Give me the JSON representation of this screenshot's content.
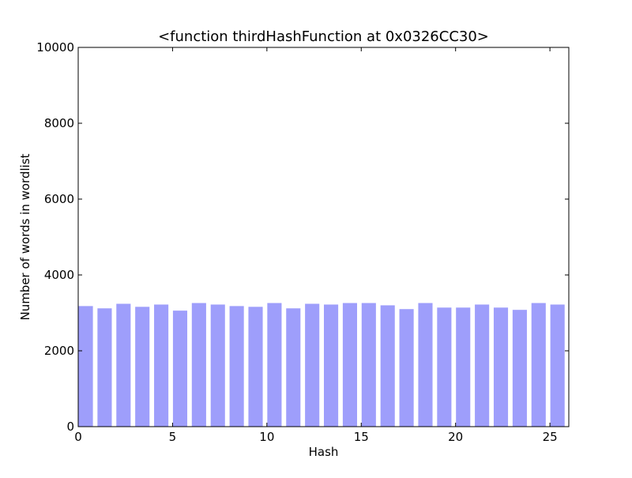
{
  "chart_data": {
    "type": "bar",
    "title": "<function thirdHashFunction at 0x0326CC30>",
    "xlabel": "Hash",
    "ylabel": "Number of words in wordlist",
    "x": [
      0,
      1,
      2,
      3,
      4,
      5,
      6,
      7,
      8,
      9,
      10,
      11,
      12,
      13,
      14,
      15,
      16,
      17,
      18,
      19,
      20,
      21,
      22,
      23,
      24,
      25
    ],
    "values": [
      3190,
      3130,
      3250,
      3170,
      3230,
      3070,
      3270,
      3230,
      3190,
      3170,
      3270,
      3130,
      3250,
      3230,
      3270,
      3270,
      3210,
      3110,
      3270,
      3150,
      3150,
      3230,
      3150,
      3090,
      3270,
      3230
    ],
    "xlim": [
      0,
      26
    ],
    "ylim": [
      0,
      10000
    ],
    "xticks": [
      0,
      5,
      10,
      15,
      20,
      25
    ],
    "yticks": [
      0,
      2000,
      4000,
      6000,
      8000,
      10000
    ],
    "grid": false,
    "bar_color": "#9e9efb",
    "bar_edge_color": "#ffffff"
  }
}
